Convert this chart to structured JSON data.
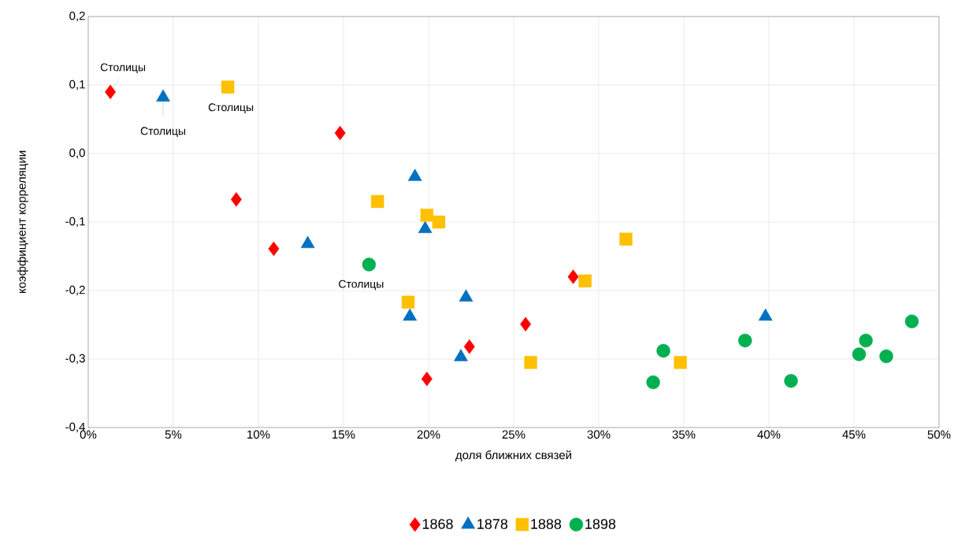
{
  "chart_data": {
    "type": "scatter",
    "xlabel": "доля ближних связей",
    "ylabel": "коэффициент корреляции",
    "xlim": [
      0,
      50
    ],
    "xticks": [
      {
        "value": 0,
        "label": "0%"
      },
      {
        "value": 5,
        "label": "5%"
      },
      {
        "value": 10,
        "label": "10%"
      },
      {
        "value": 15,
        "label": "15%"
      },
      {
        "value": 20,
        "label": "20%"
      },
      {
        "value": 25,
        "label": "25%"
      },
      {
        "value": 30,
        "label": "30%"
      },
      {
        "value": 35,
        "label": "35%"
      },
      {
        "value": 40,
        "label": "40%"
      },
      {
        "value": 45,
        "label": "45%"
      },
      {
        "value": 50,
        "label": "50%"
      }
    ],
    "ylim": [
      -0.4,
      0.2
    ],
    "yticks": [
      {
        "value": -0.4,
        "label": "-0,4"
      },
      {
        "value": -0.3,
        "label": "-0,3"
      },
      {
        "value": -0.2,
        "label": "-0,2"
      },
      {
        "value": -0.1,
        "label": "-0,1"
      },
      {
        "value": 0,
        "label": "0,0"
      },
      {
        "value": 0.1,
        "label": "0,1"
      },
      {
        "value": 0.2,
        "label": "0,2"
      }
    ],
    "grid": true,
    "legend": "bottom",
    "series": [
      {
        "name": "1868",
        "color": "#ff0000",
        "marker": "diamond",
        "x": [
          1.3,
          14.8,
          8.7,
          10.9,
          28.5,
          25.7,
          22.4,
          19.9
        ],
        "values": [
          0.09,
          0.03,
          -0.067,
          -0.139,
          -0.18,
          -0.249,
          -0.282,
          -0.329
        ]
      },
      {
        "name": "1878",
        "color": "#0070c0",
        "marker": "triangle",
        "x": [
          4.4,
          19.2,
          19.8,
          12.9,
          22.2,
          18.9,
          21.9,
          39.8
        ],
        "values": [
          0.082,
          -0.034,
          -0.11,
          -0.132,
          -0.21,
          -0.238,
          -0.297,
          -0.238
        ]
      },
      {
        "name": "1888",
        "color": "#ffc000",
        "marker": "square",
        "x": [
          8.2,
          17.0,
          19.9,
          20.6,
          31.6,
          29.2,
          18.8,
          26.0,
          34.8
        ],
        "values": [
          0.097,
          -0.07,
          -0.09,
          -0.1,
          -0.125,
          -0.186,
          -0.217,
          -0.305,
          -0.305
        ]
      },
      {
        "name": "1898",
        "color": "#00b050",
        "marker": "circle",
        "x": [
          16.5,
          33.8,
          33.2,
          38.6,
          41.3,
          45.7,
          45.3,
          46.9,
          48.4
        ],
        "values": [
          -0.162,
          -0.288,
          -0.334,
          -0.273,
          -0.332,
          -0.273,
          -0.293,
          -0.296,
          -0.245
        ]
      }
    ],
    "annotations": [
      {
        "text": "Столицы",
        "x": 1.3,
        "y": 0.09
      },
      {
        "text": "Столицы",
        "x": 4.4,
        "y": 0.082
      },
      {
        "text": "Столицы",
        "x": 8.2,
        "y": 0.097
      },
      {
        "text": "Столицы",
        "x": 16.5,
        "y": -0.162
      }
    ]
  }
}
